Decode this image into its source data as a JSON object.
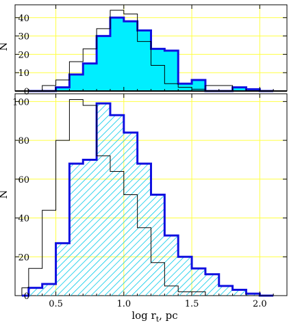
{
  "chart_data": [
    {
      "type": "bar",
      "panel": "top",
      "xlabel": "",
      "ylabel": "N",
      "xlim": [
        0.2,
        2.2
      ],
      "ylim": [
        0,
        47
      ],
      "x_ticks": [
        "0.5",
        "1.0",
        "1.5",
        "2.0"
      ],
      "x_tick_values": [
        0.5,
        1.0,
        1.5,
        2.0
      ],
      "y_ticks": [
        "0",
        "10",
        "20",
        "30",
        "40"
      ],
      "y_tick_values": [
        0,
        10,
        20,
        30,
        40
      ],
      "grid": true,
      "bin_edges": [
        0.3,
        0.35,
        0.4,
        0.45,
        0.5,
        0.55,
        0.6,
        0.65,
        0.7,
        0.75,
        0.8,
        0.85,
        0.9,
        0.95,
        1.0,
        1.05,
        1.1,
        1.15,
        1.2,
        1.25,
        1.3,
        1.35,
        1.4,
        1.45,
        1.5,
        1.55,
        1.6,
        1.65,
        1.7,
        1.75,
        1.8,
        1.85,
        1.9,
        1.95,
        2.0,
        2.05,
        2.1
      ],
      "series": [
        {
          "style": "thin-outline",
          "color": "#000000",
          "counts": [
            0,
            0,
            3,
            3,
            6,
            6,
            16,
            16,
            23,
            23,
            34,
            34,
            44,
            44,
            42,
            42,
            27,
            27,
            14,
            14,
            4,
            4,
            2,
            2,
            1,
            1,
            3,
            3,
            3,
            3,
            0,
            0,
            0,
            0,
            0,
            0
          ]
        },
        {
          "style": "filled",
          "color": "#1010e0",
          "fill": "#00eeff",
          "counts": [
            0,
            0,
            0,
            0,
            2,
            2,
            9,
            9,
            15,
            15,
            30,
            30,
            40,
            40,
            38,
            38,
            33,
            33,
            23,
            23,
            22,
            22,
            4,
            4,
            6,
            6,
            0,
            0,
            0,
            0,
            2,
            2,
            1,
            1,
            0,
            0
          ]
        }
      ]
    },
    {
      "type": "bar",
      "panel": "bottom",
      "xlabel": "log r",
      "xlabel_sub": "t",
      "xlabel_unit": ", pc",
      "ylabel": "N",
      "xlim": [
        0.2,
        2.2
      ],
      "ylim": [
        0,
        104
      ],
      "x_ticks": [
        "0.5",
        "1.0",
        "1.5",
        "2.0"
      ],
      "x_tick_values": [
        0.5,
        1.0,
        1.5,
        2.0
      ],
      "y_ticks": [
        "0",
        "20",
        "40",
        "60",
        "80",
        "100"
      ],
      "y_tick_values": [
        0,
        20,
        40,
        60,
        80,
        100
      ],
      "grid": true,
      "bin_edges": [
        0.25,
        0.3,
        0.35,
        0.4,
        0.45,
        0.5,
        0.55,
        0.6,
        0.65,
        0.7,
        0.75,
        0.8,
        0.85,
        0.9,
        0.95,
        1.0,
        1.05,
        1.1,
        1.15,
        1.2,
        1.25,
        1.3,
        1.35,
        1.4,
        1.45,
        1.5,
        1.55,
        1.6,
        1.65,
        1.7,
        1.75,
        1.8,
        1.85,
        1.9,
        1.95,
        2.0,
        2.05,
        2.1
      ],
      "series": [
        {
          "style": "thin-outline",
          "color": "#000000",
          "counts": [
            4,
            14,
            14,
            44,
            44,
            80,
            80,
            101,
            101,
            98,
            98,
            72,
            72,
            64,
            64,
            52,
            52,
            35,
            35,
            17,
            17,
            5,
            5,
            2,
            2,
            2,
            2,
            0,
            0,
            0,
            0,
            0,
            0,
            0,
            0,
            0,
            0
          ]
        },
        {
          "style": "hatched",
          "color": "#1010e0",
          "fill": "#00c8e8",
          "counts": [
            0,
            4,
            4,
            6,
            6,
            27,
            27,
            68,
            68,
            70,
            70,
            99,
            99,
            93,
            93,
            84,
            84,
            68,
            68,
            52,
            52,
            31,
            31,
            20,
            20,
            14,
            14,
            11,
            11,
            5,
            5,
            3,
            3,
            1,
            1,
            0,
            0
          ]
        }
      ]
    }
  ]
}
